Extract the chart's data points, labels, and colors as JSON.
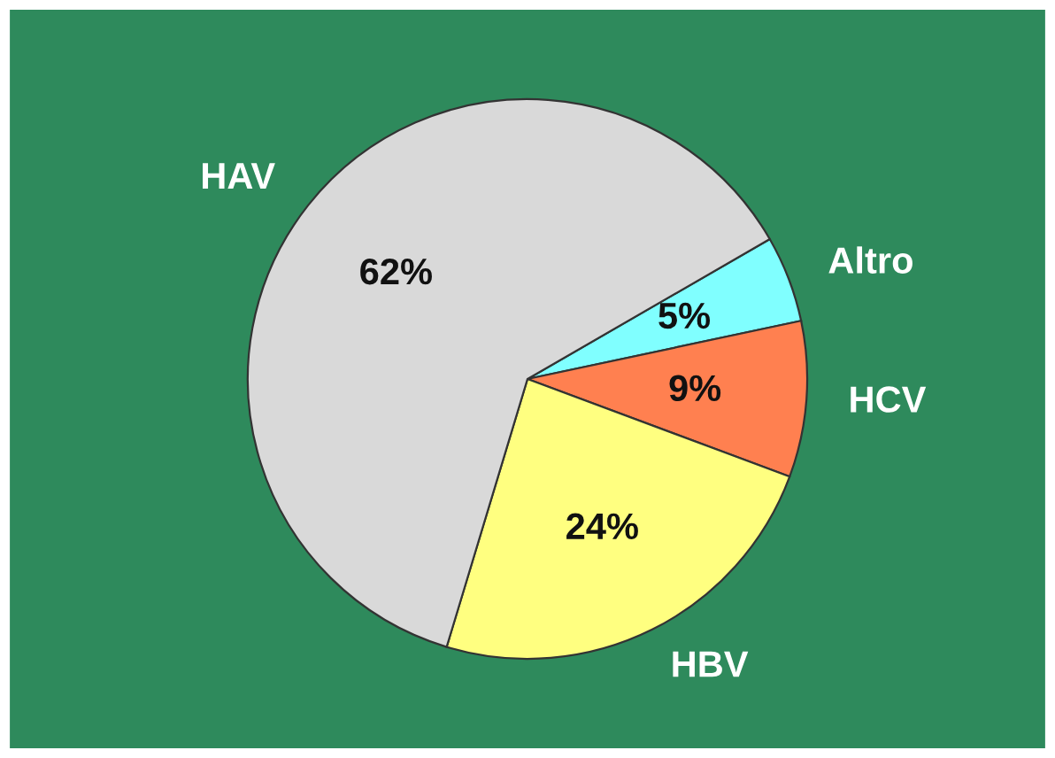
{
  "chart_data": {
    "type": "pie",
    "categories": [
      "Altro",
      "HCV",
      "HBV",
      "HAV"
    ],
    "values": [
      5,
      9,
      24,
      62
    ],
    "value_labels": [
      "5%",
      "9%",
      "24%",
      "62%"
    ],
    "colors": [
      "#80ffff",
      "#ff8050",
      "#ffff80",
      "#d9d9d9"
    ]
  }
}
